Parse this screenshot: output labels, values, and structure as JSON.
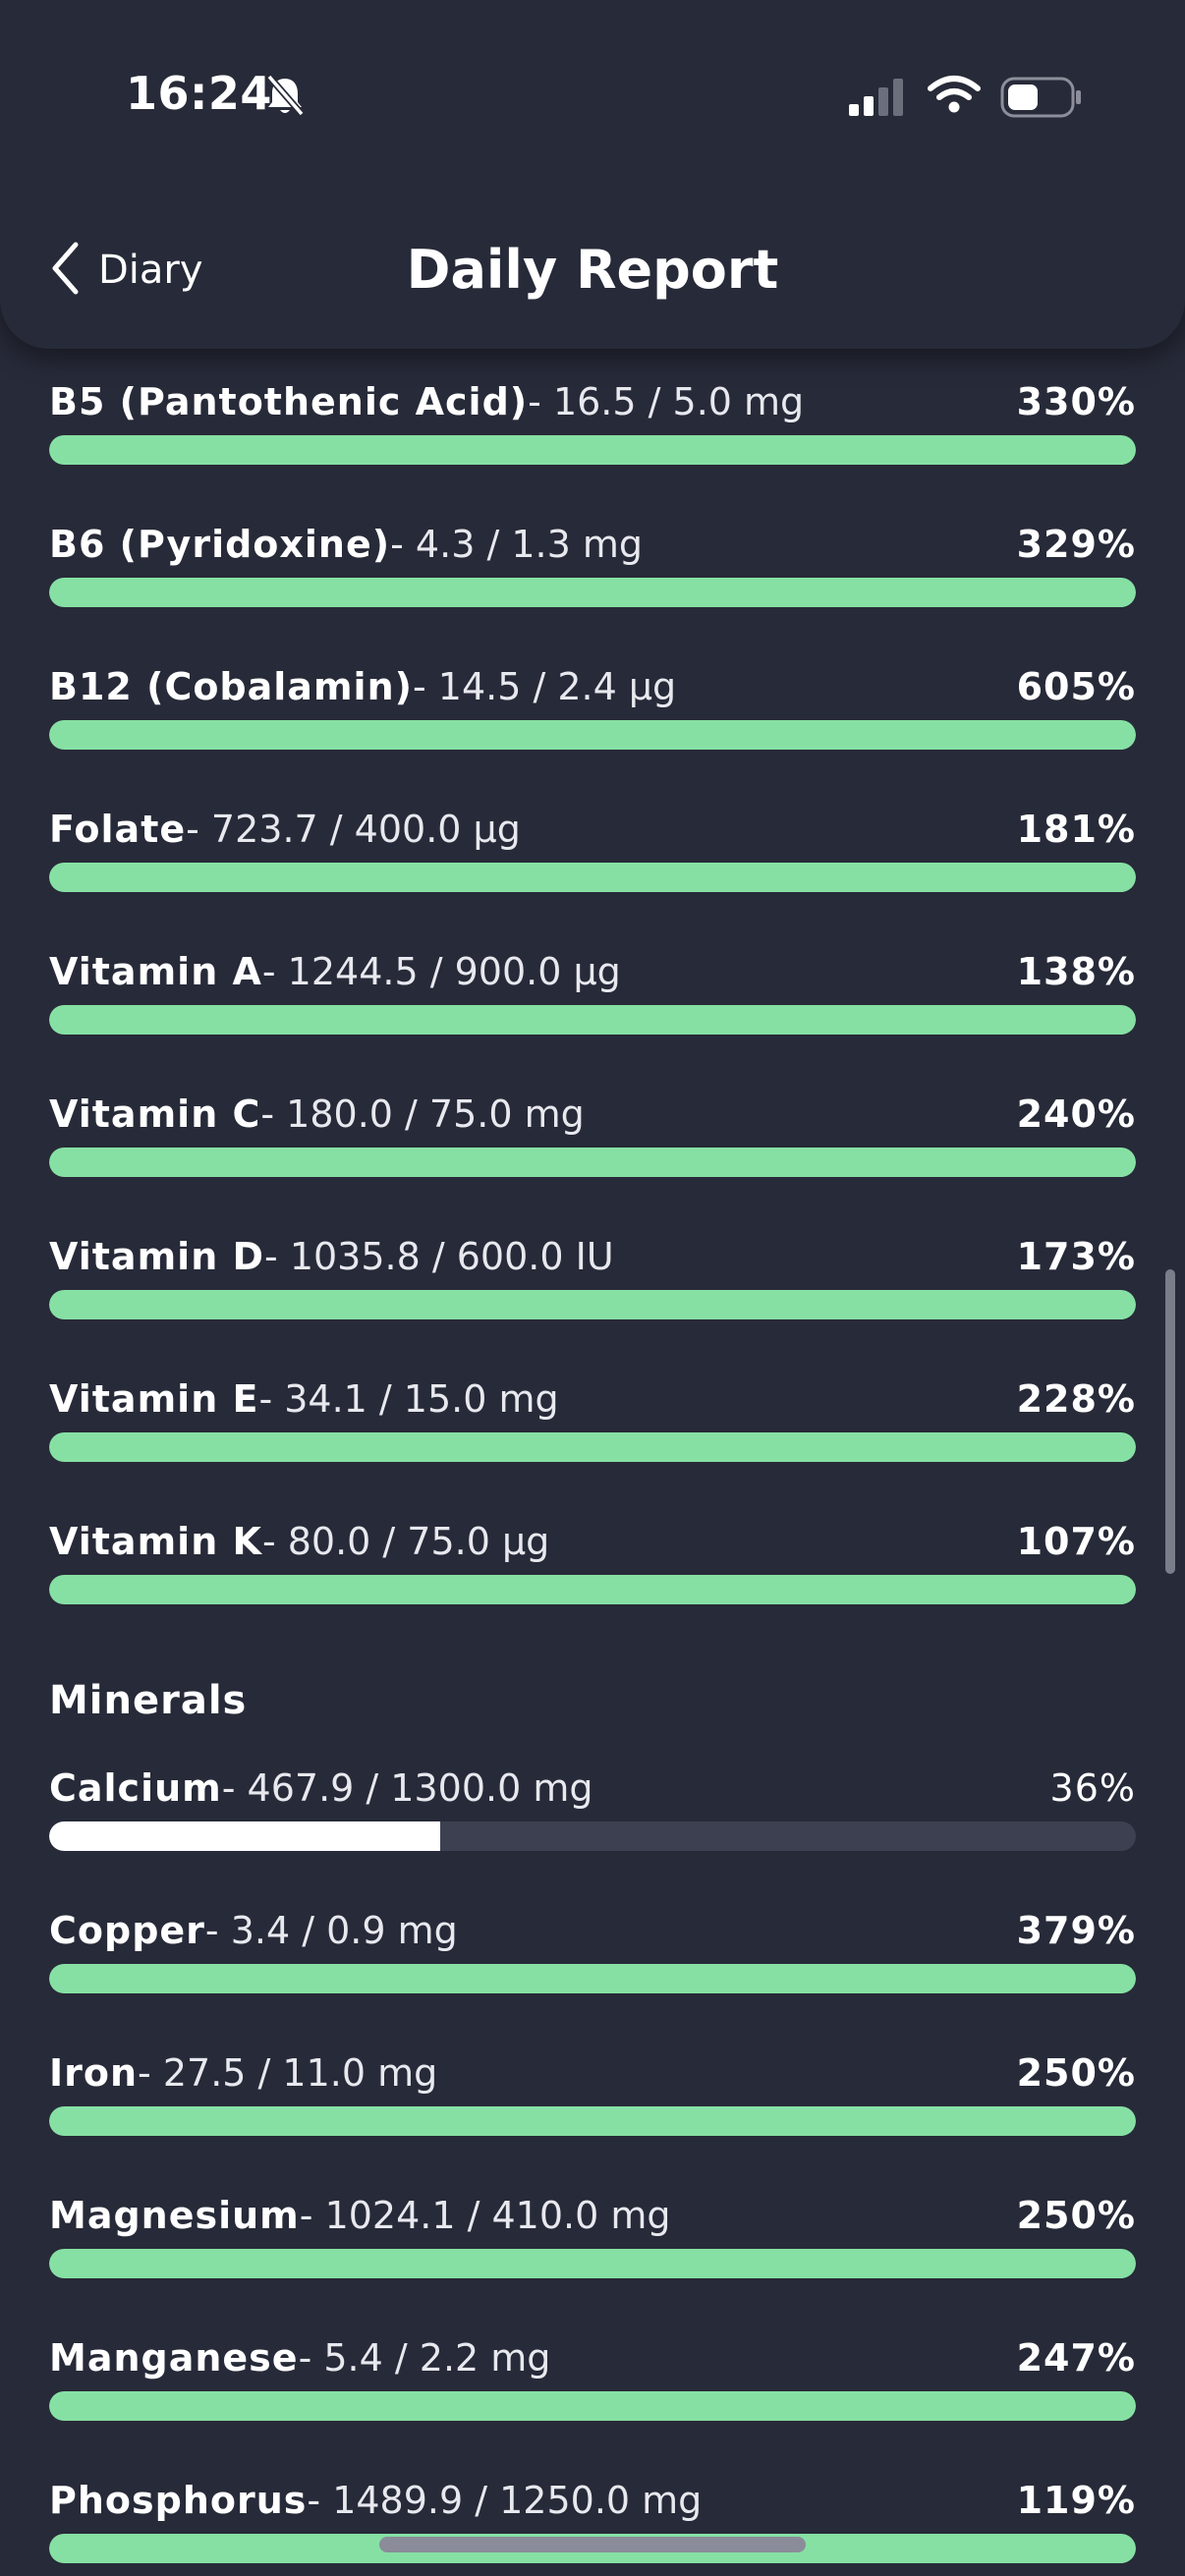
{
  "status_bar": {
    "time": "16:24"
  },
  "nav": {
    "back_label": "Diary",
    "title": "Daily Report"
  },
  "colors": {
    "over": "#86e0a4",
    "under": "#ffffff",
    "track": "#3d4050"
  },
  "vitamins": [
    {
      "name": "B5 (Pantothenic Acid)",
      "amount": "- 16.5 / 5.0 mg",
      "pct_label": "330%",
      "pct": 330
    },
    {
      "name": "B6 (Pyridoxine)",
      "amount": "- 4.3 / 1.3 mg",
      "pct_label": "329%",
      "pct": 329
    },
    {
      "name": "B12 (Cobalamin)",
      "amount": "- 14.5 / 2.4 µg",
      "pct_label": "605%",
      "pct": 605
    },
    {
      "name": "Folate",
      "amount": "- 723.7 / 400.0 µg",
      "pct_label": "181%",
      "pct": 181
    },
    {
      "name": "Vitamin A",
      "amount": "- 1244.5 / 900.0 µg",
      "pct_label": "138%",
      "pct": 138
    },
    {
      "name": "Vitamin C",
      "amount": "- 180.0 / 75.0 mg",
      "pct_label": "240%",
      "pct": 240
    },
    {
      "name": "Vitamin D",
      "amount": "- 1035.8 / 600.0 IU",
      "pct_label": "173%",
      "pct": 173
    },
    {
      "name": "Vitamin E",
      "amount": "- 34.1 / 15.0 mg",
      "pct_label": "228%",
      "pct": 228
    },
    {
      "name": "Vitamin K",
      "amount": "- 80.0 / 75.0 µg",
      "pct_label": "107%",
      "pct": 107
    }
  ],
  "minerals": {
    "title": "Minerals",
    "items": [
      {
        "name": "Calcium",
        "amount": "- 467.9 / 1300.0 mg",
        "pct_label": "36%",
        "pct": 36
      },
      {
        "name": "Copper",
        "amount": "- 3.4 / 0.9 mg",
        "pct_label": "379%",
        "pct": 379
      },
      {
        "name": "Iron",
        "amount": "- 27.5 / 11.0 mg",
        "pct_label": "250%",
        "pct": 250
      },
      {
        "name": "Magnesium",
        "amount": "- 1024.1 / 410.0 mg",
        "pct_label": "250%",
        "pct": 250
      },
      {
        "name": "Manganese",
        "amount": "- 5.4 / 2.2 mg",
        "pct_label": "247%",
        "pct": 247
      },
      {
        "name": "Phosphorus",
        "amount": "- 1489.9 / 1250.0 mg",
        "pct_label": "119%",
        "pct": 119
      }
    ]
  }
}
